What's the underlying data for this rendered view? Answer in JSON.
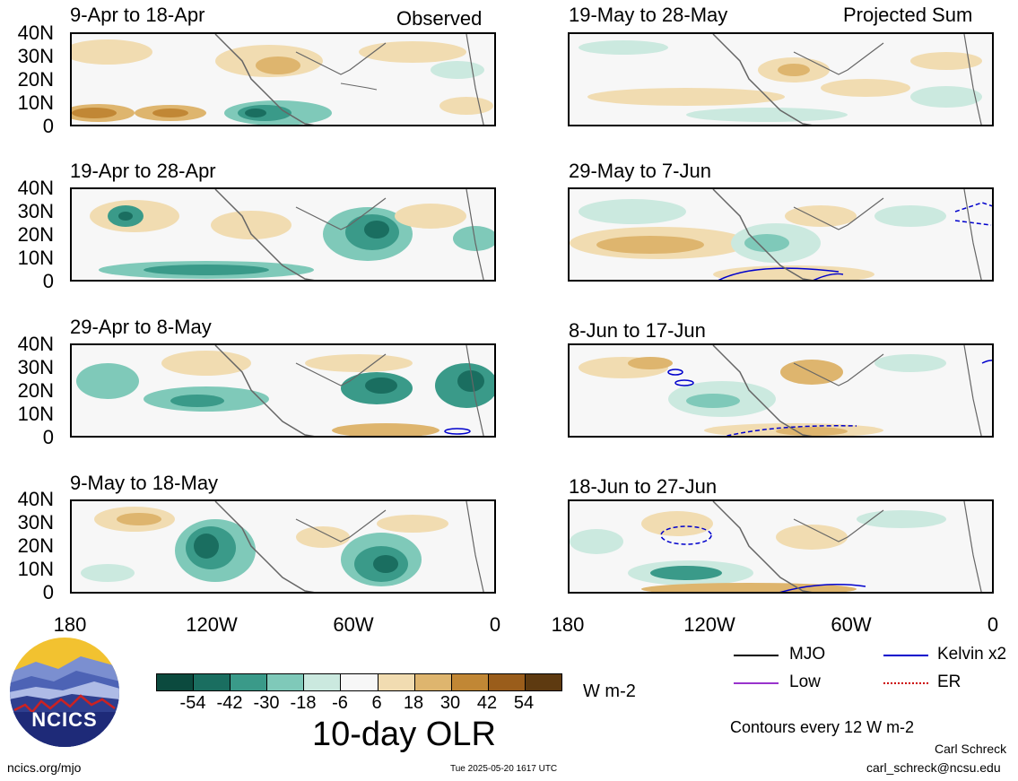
{
  "left_panels": [
    {
      "title": "9-Apr to 18-Apr",
      "tag": "Observed"
    },
    {
      "title": "19-Apr to 28-Apr",
      "tag": ""
    },
    {
      "title": "29-Apr to 8-May",
      "tag": ""
    },
    {
      "title": "9-May to 18-May",
      "tag": ""
    }
  ],
  "right_panels": [
    {
      "title": "19-May to 28-May",
      "tag": "Projected Sum"
    },
    {
      "title": "29-May to 7-Jun",
      "tag": ""
    },
    {
      "title": "8-Jun to 17-Jun",
      "tag": ""
    },
    {
      "title": "18-Jun to 27-Jun",
      "tag": ""
    }
  ],
  "lat_labels": [
    "40N",
    "30N",
    "20N",
    "10N",
    "0"
  ],
  "lon_labels": [
    "180",
    "120W",
    "60W",
    "0"
  ],
  "colorbar": {
    "labels": [
      "-54",
      "-42",
      "-30",
      "-18",
      "-6",
      "6",
      "18",
      "30",
      "42",
      "54"
    ],
    "colors": [
      "#0b4a3e",
      "#1a6e60",
      "#3a9a89",
      "#7fc9b9",
      "#cbe9df",
      "#f7f7f7",
      "#f1dcb1",
      "#deb56e",
      "#c18735",
      "#9a5d1b",
      "#5e3a10"
    ],
    "units": "W m-2",
    "title": "10-day OLR"
  },
  "legend": {
    "items": [
      {
        "label": "MJO",
        "color": "#000000"
      },
      {
        "label": "Kelvin x2",
        "color": "#0000cc"
      },
      {
        "label": "Low",
        "color": "#9933cc"
      },
      {
        "label": "ER",
        "color": "#cc0000"
      }
    ],
    "contours": "Contours every 12 W m-2"
  },
  "logo": {
    "text": "NCICS"
  },
  "footer": {
    "url": "ncics.org/mjo",
    "timestamp": "Tue 2025-05-20 1617 UTC",
    "author": "Carl Schreck",
    "email": "carl_schreck@ncsu.edu"
  }
}
